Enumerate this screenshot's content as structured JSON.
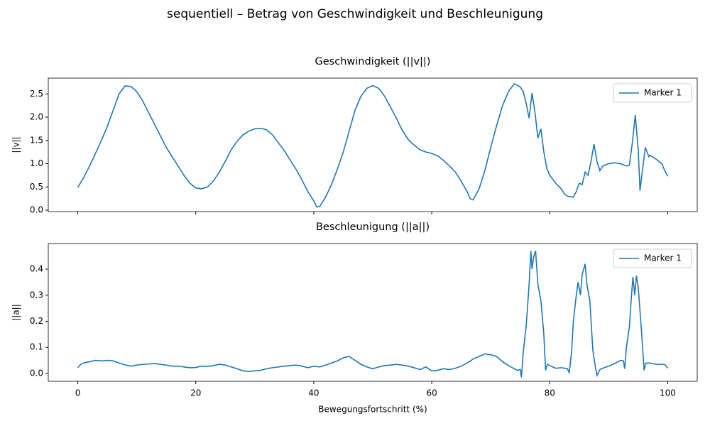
{
  "suptitle": "sequentiell – Betrag von Geschwindigkeit und Beschleunigung",
  "chart_data": [
    {
      "type": "line",
      "title": "Geschwindigkeit (||v||)",
      "ylabel": "||v||",
      "legend": "upper right",
      "xlim": [
        -5,
        105
      ],
      "ylim": [
        -0.03,
        2.84
      ],
      "yticks": [
        {
          "value": 0,
          "label": "0.0"
        },
        0.5,
        {
          "value": 1,
          "label": "1.0"
        },
        1.5,
        {
          "value": 2,
          "label": "2.0"
        },
        2.5
      ],
      "x": [
        0,
        1,
        2,
        3,
        4,
        5,
        6,
        7,
        8,
        9,
        10,
        11,
        12,
        13,
        14,
        15,
        16,
        17,
        18,
        19,
        20,
        21,
        22,
        23,
        24,
        25,
        26,
        27,
        28,
        29,
        30,
        31,
        32,
        33,
        34,
        35,
        36,
        37,
        38,
        39,
        40,
        40.5,
        41,
        42,
        43,
        44,
        45,
        46,
        47,
        48,
        49,
        50,
        51,
        52,
        53,
        54,
        55,
        56,
        57,
        58,
        59,
        60,
        61,
        62,
        63,
        64,
        65,
        66,
        66.5,
        67,
        68,
        69,
        70,
        71,
        72,
        73,
        74,
        75,
        75.5,
        76,
        76.5,
        77,
        77.5,
        78,
        78.5,
        79,
        79.5,
        80,
        81,
        82,
        82.5,
        83,
        84,
        84.5,
        85,
        85.5,
        86,
        86.5,
        87,
        87.5,
        88,
        88.5,
        89,
        90,
        91,
        92,
        93,
        93.5,
        94,
        94.5,
        95,
        95.3,
        95.8,
        96.2,
        96.8,
        97,
        98,
        99,
        99.5,
        100
      ],
      "series": [
        {
          "name": "Marker 1",
          "color": "#1f77b4",
          "values": [
            0.49,
            0.7,
            0.95,
            1.22,
            1.5,
            1.8,
            2.15,
            2.5,
            2.67,
            2.66,
            2.55,
            2.35,
            2.1,
            1.85,
            1.6,
            1.35,
            1.15,
            0.95,
            0.75,
            0.58,
            0.48,
            0.46,
            0.5,
            0.63,
            0.82,
            1.05,
            1.3,
            1.48,
            1.62,
            1.7,
            1.75,
            1.76,
            1.73,
            1.62,
            1.45,
            1.28,
            1.08,
            0.88,
            0.65,
            0.4,
            0.2,
            0.07,
            0.08,
            0.28,
            0.55,
            0.88,
            1.25,
            1.7,
            2.15,
            2.45,
            2.62,
            2.68,
            2.62,
            2.45,
            2.22,
            1.98,
            1.72,
            1.52,
            1.4,
            1.3,
            1.25,
            1.22,
            1.17,
            1.07,
            0.95,
            0.82,
            0.62,
            0.4,
            0.25,
            0.22,
            0.45,
            0.85,
            1.35,
            1.82,
            2.25,
            2.55,
            2.72,
            2.65,
            2.55,
            2.3,
            1.98,
            2.52,
            2.1,
            1.55,
            1.75,
            1.25,
            0.9,
            0.75,
            0.58,
            0.45,
            0.35,
            0.3,
            0.28,
            0.4,
            0.58,
            0.55,
            0.82,
            0.75,
            1.05,
            1.42,
            1.05,
            0.85,
            0.95,
            1.0,
            1.02,
            1.0,
            0.95,
            0.97,
            1.45,
            2.05,
            1.3,
            0.42,
            0.95,
            1.35,
            1.15,
            1.18,
            1.1,
            1.0,
            0.85,
            0.73
          ]
        }
      ]
    },
    {
      "type": "line",
      "title": "Beschleunigung (||a||)",
      "ylabel": "||a||",
      "xlabel": "Bewegungsfortschritt (%)",
      "legend": "upper right",
      "xlim": [
        -5,
        105
      ],
      "ylim": [
        -0.03,
        0.498
      ],
      "xticks": [
        0,
        20,
        40,
        60,
        80,
        100
      ],
      "yticks": [
        {
          "value": 0,
          "label": "0.0"
        },
        0.1,
        0.2,
        0.3,
        0.4
      ],
      "x": [
        0,
        0.5,
        1,
        2,
        3,
        4,
        5,
        6,
        7,
        8,
        9,
        10,
        11,
        12,
        13,
        14,
        15,
        16,
        17,
        18,
        19,
        20,
        21,
        22,
        23,
        24,
        25,
        26,
        27,
        28,
        29,
        30,
        31,
        32,
        33,
        34,
        35,
        36,
        37,
        38,
        39,
        40,
        41,
        42,
        43,
        44,
        45,
        46,
        47,
        48,
        49,
        50,
        51,
        52,
        53,
        54,
        55,
        56,
        57,
        58,
        59,
        60,
        61,
        62,
        63,
        64,
        65,
        66,
        67,
        68,
        69,
        70,
        71,
        72,
        73,
        74,
        74.5,
        75,
        75.2,
        75.5,
        76,
        76.5,
        76.8,
        77,
        77.3,
        77.6,
        78,
        78.5,
        79,
        79.3,
        79.6,
        80,
        81,
        82,
        83,
        83.3,
        83.7,
        84,
        84.5,
        84.8,
        85.2,
        85.5,
        86,
        86.3,
        86.8,
        87.3,
        87.7,
        88,
        88.5,
        89,
        90,
        91,
        92,
        92.5,
        92.7,
        93,
        93.5,
        93.8,
        94.1,
        94.4,
        94.7,
        95,
        95.5,
        95.8,
        96,
        96.3,
        97,
        98,
        99,
        99.5,
        100
      ],
      "series": [
        {
          "name": "Marker 1",
          "color": "#1f77b4",
          "values": [
            0.022,
            0.035,
            0.04,
            0.045,
            0.05,
            0.048,
            0.05,
            0.048,
            0.04,
            0.033,
            0.028,
            0.032,
            0.035,
            0.036,
            0.038,
            0.035,
            0.032,
            0.028,
            0.028,
            0.025,
            0.022,
            0.023,
            0.028,
            0.027,
            0.03,
            0.035,
            0.032,
            0.025,
            0.018,
            0.01,
            0.008,
            0.01,
            0.012,
            0.018,
            0.022,
            0.025,
            0.028,
            0.03,
            0.032,
            0.028,
            0.022,
            0.028,
            0.025,
            0.032,
            0.04,
            0.048,
            0.06,
            0.065,
            0.05,
            0.035,
            0.025,
            0.018,
            0.025,
            0.03,
            0.032,
            0.035,
            0.032,
            0.028,
            0.022,
            0.015,
            0.025,
            0.01,
            0.012,
            0.018,
            0.015,
            0.02,
            0.028,
            0.04,
            0.055,
            0.065,
            0.075,
            0.072,
            0.065,
            0.045,
            0.03,
            0.018,
            0.012,
            0.015,
            -0.015,
            0.08,
            0.18,
            0.34,
            0.47,
            0.4,
            0.45,
            0.47,
            0.34,
            0.28,
            0.15,
            0.012,
            0.035,
            0.03,
            0.02,
            0.022,
            0.018,
            0.003,
            0.08,
            0.2,
            0.3,
            0.35,
            0.3,
            0.38,
            0.42,
            0.34,
            0.28,
            0.09,
            0.03,
            -0.008,
            0.015,
            0.02,
            0.028,
            0.038,
            0.05,
            0.048,
            0.018,
            0.1,
            0.18,
            0.28,
            0.37,
            0.3,
            0.375,
            0.33,
            0.18,
            0.08,
            0.012,
            0.04,
            0.04,
            0.035,
            0.035,
            0.035,
            0.02
          ]
        }
      ]
    }
  ]
}
